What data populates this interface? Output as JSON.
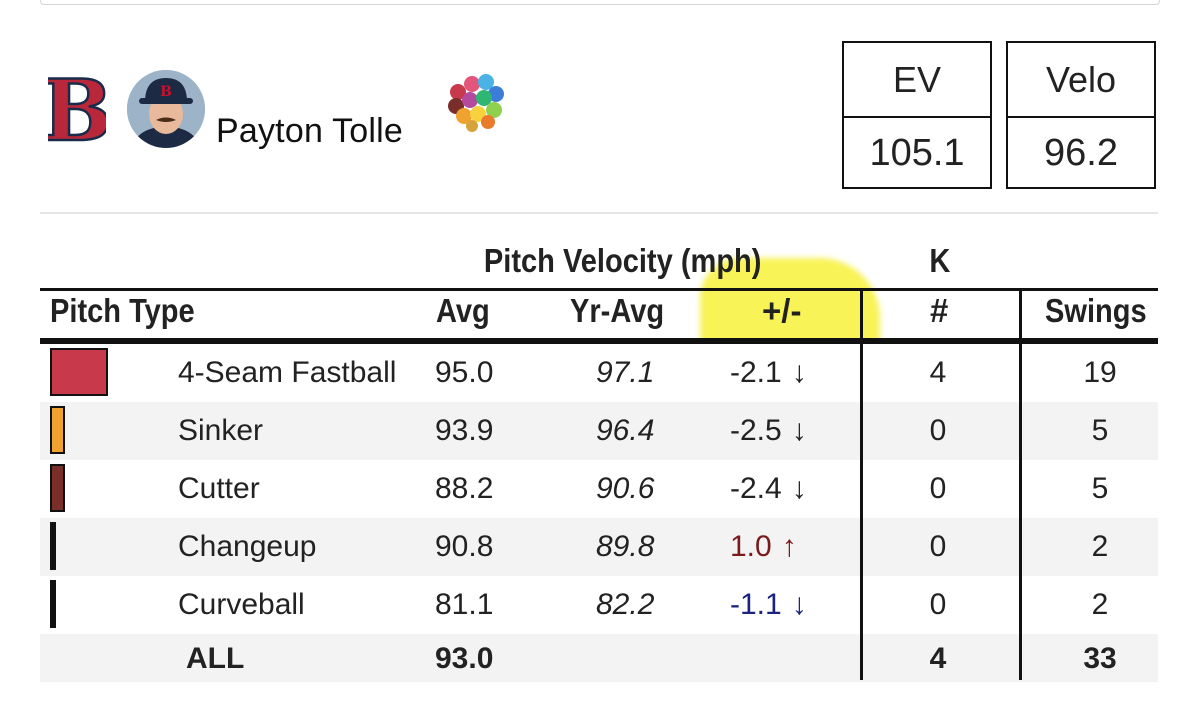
{
  "player": {
    "name": "Payton Tolle",
    "team_logo_letter": "B",
    "team_color": "#b8283a",
    "cap_letter": "B"
  },
  "stat_boxes": [
    {
      "label": "EV",
      "value": "105.1"
    },
    {
      "label": "Velo",
      "value": "96.2"
    }
  ],
  "chart_data": {
    "type": "table",
    "group_headers": {
      "velocity": "Pitch Velocity (mph)",
      "k": "K"
    },
    "columns": [
      "Pitch Type",
      "Avg",
      "Yr-Avg",
      "+/-",
      "#",
      "Swings"
    ],
    "rows": [
      {
        "pitch": "4-Seam Fastball",
        "color": "#c8394b",
        "usage": 0.58,
        "avg": "95.0",
        "yr_avg": "97.1",
        "diff": "-2.1",
        "dir": "down",
        "k": "4",
        "swings": "19"
      },
      {
        "pitch": "Sinker",
        "color": "#f0a230",
        "usage": 0.15,
        "avg": "93.9",
        "yr_avg": "96.4",
        "diff": "-2.5",
        "dir": "down",
        "k": "0",
        "swings": "5"
      },
      {
        "pitch": "Cutter",
        "color": "#7a2e2a",
        "usage": 0.15,
        "avg": "88.2",
        "yr_avg": "90.6",
        "diff": "-2.4",
        "dir": "down",
        "k": "0",
        "swings": "5"
      },
      {
        "pitch": "Changeup",
        "color": "#111111",
        "usage": 0.06,
        "avg": "90.8",
        "yr_avg": "89.8",
        "diff": "1.0",
        "dir": "up",
        "k": "0",
        "swings": "2"
      },
      {
        "pitch": "Curveball",
        "color": "#111111",
        "usage": 0.06,
        "avg": "81.1",
        "yr_avg": "82.2",
        "diff": "-1.1",
        "dir": "down",
        "k": "0",
        "swings": "2"
      }
    ],
    "total": {
      "label": "ALL",
      "avg": "93.0",
      "k": "4",
      "swings": "33"
    },
    "highlight_column": "+/-",
    "colors": {
      "down_strong": "#222222",
      "up": "#7a1a1a",
      "down_mild": "#1a237e",
      "highlight": "#f6f032"
    }
  }
}
